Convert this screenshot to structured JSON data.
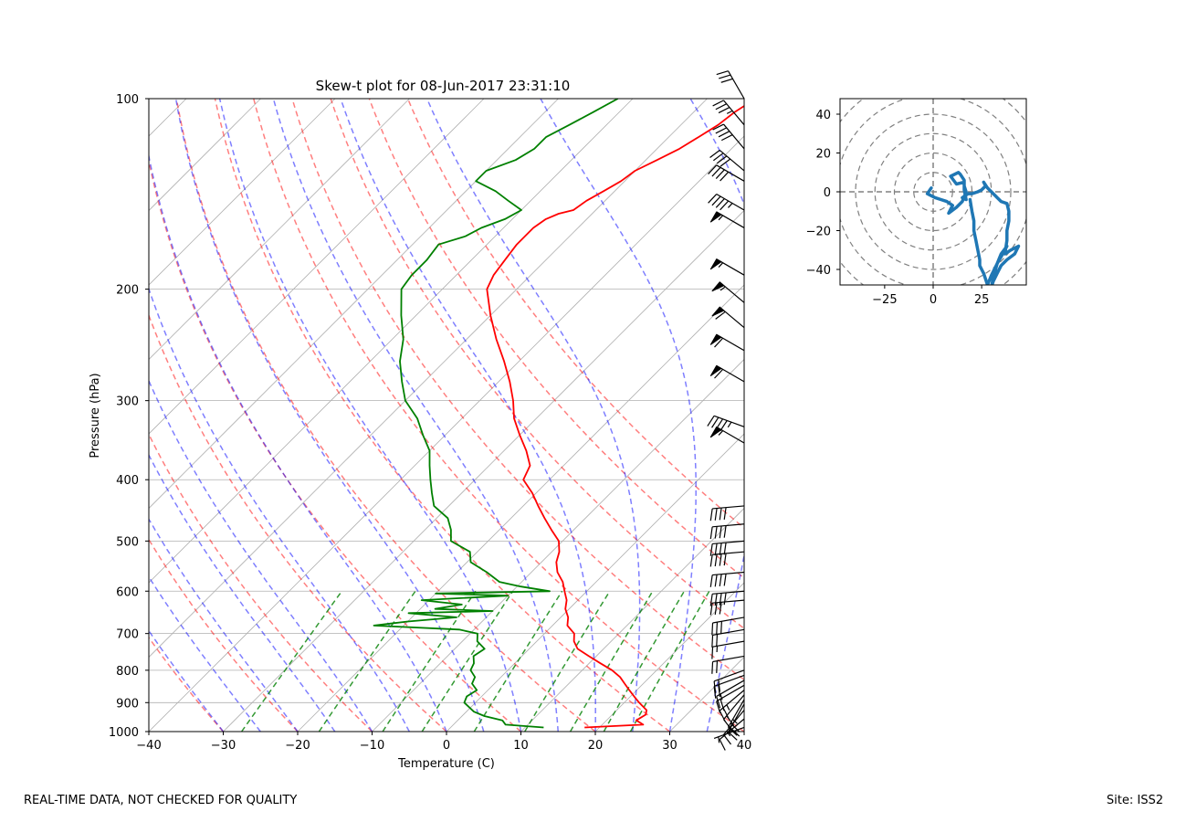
{
  "chart_data": [
    {
      "type": "skew-t",
      "title": "Skew-t plot for 08-Jun-2017 23:31:10",
      "xlabel": "Temperature (C)",
      "ylabel": "Pressure (hPa)",
      "xlim": [
        -40,
        40
      ],
      "ylim": [
        1000,
        100
      ],
      "skew": 45,
      "x_ticks": [
        -40,
        -30,
        -20,
        -10,
        0,
        10,
        20,
        30,
        40
      ],
      "x_tick_labels": [
        "−40",
        "−30",
        "−20",
        "−10",
        "0",
        "10",
        "20",
        "30",
        "40"
      ],
      "y_ticks": [
        100,
        200,
        300,
        400,
        500,
        600,
        700,
        800,
        900,
        1000
      ],
      "y_tick_labels": [
        "100",
        "200",
        "300",
        "400",
        "500",
        "600",
        "700",
        "800",
        "900",
        "1000"
      ],
      "grid": true,
      "background_lines": {
        "isotherms_step": 10,
        "dry_adiabats_theta_C": [
          -30,
          -20,
          -10,
          0,
          10,
          20,
          30,
          40,
          50,
          60,
          70,
          80
        ],
        "moist_adiabats_T_C": [
          -30,
          -25,
          -20,
          -15,
          -10,
          -5,
          0,
          5,
          10,
          15,
          20,
          25,
          30,
          35
        ],
        "mixing_ratio_g_kg": [
          0.4,
          1,
          2,
          3,
          5,
          8,
          12,
          16,
          20
        ],
        "mixing_ratio_top_hPa": 600
      },
      "series": [
        {
          "name": "Temperature",
          "color": "#ff0000",
          "pressure": [
            985,
            975,
            960,
            940,
            925,
            900,
            880,
            860,
            840,
            820,
            800,
            780,
            760,
            740,
            720,
            700,
            680,
            660,
            640,
            620,
            600,
            580,
            560,
            540,
            520,
            500,
            480,
            460,
            440,
            420,
            400,
            380,
            360,
            340,
            320,
            300,
            280,
            260,
            240,
            220,
            200,
            190,
            180,
            170,
            160,
            155,
            152,
            150,
            145,
            140,
            135,
            130,
            125,
            120,
            115,
            110,
            105,
            100
          ],
          "values": [
            18.0,
            25.5,
            24.0,
            24.5,
            24.0,
            22.0,
            20.5,
            19.0,
            17.5,
            16.0,
            14.0,
            11.5,
            9.0,
            6.5,
            5.0,
            4.0,
            2.0,
            1.0,
            -0.5,
            -1.5,
            -3.0,
            -4.5,
            -6.5,
            -8.0,
            -9.0,
            -10.5,
            -13.0,
            -15.5,
            -18.0,
            -20.5,
            -23.5,
            -24.5,
            -27.0,
            -30.0,
            -33.0,
            -35.5,
            -38.5,
            -42.0,
            -46.0,
            -50.0,
            -54.0,
            -55.0,
            -55.5,
            -56.0,
            -56.0,
            -55.5,
            -54.5,
            -53.0,
            -52.5,
            -51.5,
            -50.5,
            -50.0,
            -48.5,
            -47.0,
            -46.0,
            -45.0,
            -44.5,
            -43.5
          ]
        },
        {
          "name": "Dewpoint",
          "color": "#008000",
          "pressure": [
            985,
            975,
            960,
            945,
            930,
            900,
            880,
            860,
            840,
            820,
            800,
            780,
            760,
            740,
            720,
            700,
            690,
            680,
            675,
            670,
            660,
            650,
            645,
            640,
            630,
            620,
            610,
            605,
            600,
            590,
            580,
            560,
            540,
            520,
            500,
            480,
            460,
            440,
            420,
            400,
            380,
            360,
            340,
            320,
            300,
            280,
            260,
            240,
            220,
            200,
            190,
            180,
            170,
            165,
            160,
            155,
            150,
            145,
            140,
            135,
            130,
            125,
            120,
            115,
            110,
            105,
            100
          ],
          "values": [
            12.5,
            7.0,
            6.0,
            3.0,
            1.0,
            -1.5,
            -2.0,
            -1.5,
            -3.0,
            -3.5,
            -5.0,
            -5.5,
            -6.5,
            -6.0,
            -8.0,
            -9.0,
            -12.0,
            -24.0,
            -22.0,
            -20.0,
            -14.0,
            -21.0,
            -10.0,
            -18.0,
            -15.0,
            -21.0,
            -10.0,
            -20.0,
            -5.0,
            -9.5,
            -13.0,
            -16.0,
            -19.5,
            -21.0,
            -25.0,
            -26.5,
            -28.5,
            -32.0,
            -34.0,
            -36.0,
            -38.0,
            -40.0,
            -43.0,
            -46.0,
            -50.0,
            -53.0,
            -56.0,
            -58.5,
            -62.0,
            -65.5,
            -66.0,
            -66.0,
            -66.5,
            -64.0,
            -63.0,
            -61.0,
            -60.0,
            -63.0,
            -66.0,
            -70.0,
            -70.0,
            -67.5,
            -66.5,
            -66.5,
            -65.0,
            -63.5,
            -62.0
          ]
        }
      ],
      "wind_barbs": {
        "color": "#000000",
        "levels_hPa": [
          985,
          955,
          925,
          905,
          890,
          875,
          860,
          845,
          830,
          815,
          800,
          760,
          720,
          690,
          660,
          620,
          600,
          560,
          520,
          500,
          470,
          440,
          350,
          330,
          280,
          250,
          230,
          210,
          190,
          160,
          150,
          135,
          130,
          120,
          110,
          100
        ],
        "speeds_kt": [
          5,
          10,
          15,
          20,
          25,
          20,
          25,
          20,
          15,
          20,
          20,
          20,
          15,
          20,
          30,
          30,
          40,
          40,
          40,
          40,
          40,
          40,
          55,
          45,
          60,
          60,
          60,
          55,
          55,
          55,
          45,
          40,
          40,
          40,
          35,
          30
        ],
        "directions_deg": [
          250,
          230,
          220,
          210,
          210,
          220,
          230,
          240,
          240,
          250,
          250,
          260,
          260,
          260,
          260,
          265,
          265,
          265,
          265,
          265,
          265,
          265,
          300,
          290,
          300,
          300,
          310,
          310,
          300,
          300,
          300,
          300,
          310,
          320,
          320,
          330
        ]
      }
    },
    {
      "type": "hodograph",
      "xlim": [
        -48,
        48
      ],
      "ylim": [
        -48,
        48
      ],
      "x_ticks": [
        -25,
        0,
        25
      ],
      "x_tick_labels": [
        "−25",
        "0",
        "25"
      ],
      "y_ticks": [
        -40,
        -20,
        0,
        20,
        40
      ],
      "y_tick_labels": [
        "−40",
        "−20",
        "0",
        "20",
        "40"
      ],
      "rings": [
        10,
        20,
        30,
        40,
        50,
        60
      ],
      "color": "#1f77b4",
      "u": [
        -1,
        -3,
        1,
        4,
        7,
        10,
        9,
        8,
        12,
        15,
        17,
        16,
        16,
        14,
        13,
        9,
        12,
        16,
        16,
        17,
        15,
        18,
        20,
        23,
        25,
        27,
        26,
        28,
        31,
        33,
        35,
        38,
        39,
        39,
        38,
        38,
        37,
        40,
        44,
        42,
        38,
        35,
        33,
        31,
        30,
        31,
        33,
        35,
        38,
        37,
        33,
        30,
        28,
        27,
        26,
        25,
        24,
        24,
        23,
        22,
        21,
        21,
        20,
        19
      ],
      "v": [
        2,
        -1,
        -3,
        -4,
        -5,
        -7,
        -9,
        -11,
        -8,
        -5,
        0,
        3,
        6,
        9,
        10,
        8,
        4,
        5,
        1,
        -4,
        -3,
        -1,
        -1,
        0,
        1,
        3,
        5,
        2,
        -1,
        -3,
        -5,
        -6,
        -10,
        -15,
        -20,
        -25,
        -32,
        -30,
        -28,
        -32,
        -35,
        -38,
        -42,
        -46,
        -49,
        -44,
        -37,
        -32,
        -28,
        -30,
        -37,
        -43,
        -48,
        -45,
        -42,
        -40,
        -38,
        -35,
        -30,
        -25,
        -20,
        -15,
        -10,
        -4
      ]
    }
  ],
  "footer": {
    "left": "REAL-TIME DATA, NOT CHECKED FOR QUALITY",
    "right": "Site: ISS2"
  }
}
